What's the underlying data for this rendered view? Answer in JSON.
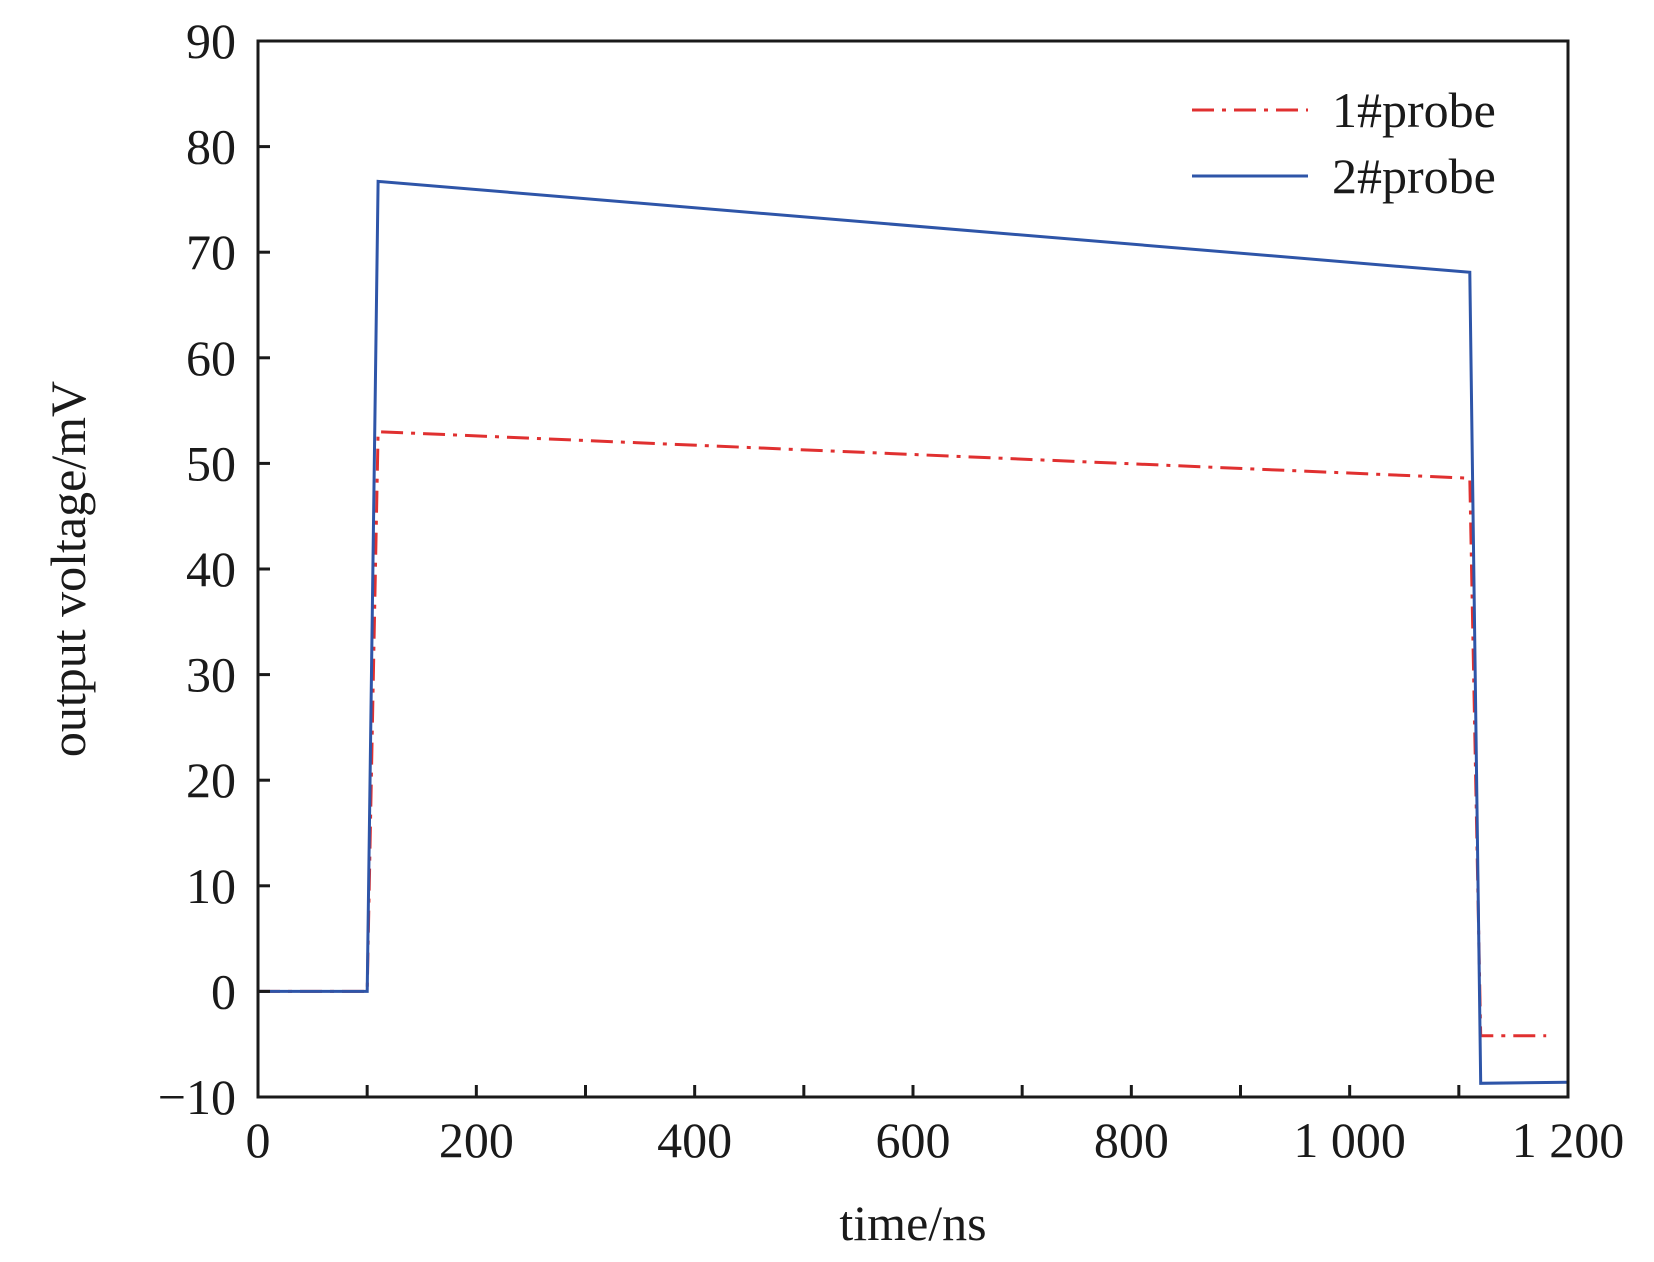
{
  "chart_data": {
    "type": "line",
    "title": "",
    "xlabel": "time/ns",
    "ylabel": "output voltage/mV",
    "xlim": [
      0,
      1200
    ],
    "ylim": [
      -10,
      90
    ],
    "xticks": [
      0,
      200,
      400,
      600,
      800,
      1000,
      1200
    ],
    "xtick_labels": [
      "0",
      "200",
      "400",
      "600",
      "800",
      "1 000",
      "1 200"
    ],
    "yticks": [
      -10,
      0,
      10,
      20,
      30,
      40,
      50,
      60,
      70,
      80,
      90
    ],
    "ytick_labels": [
      "−10",
      "0",
      "10",
      "20",
      "30",
      "40",
      "50",
      "60",
      "70",
      "80",
      "90"
    ],
    "grid": false,
    "legend_position": "top-right",
    "series": [
      {
        "name": "1#probe",
        "color": "#e03030",
        "style": "dash-dot",
        "x": [
          0,
          100,
          110,
          1110,
          1120,
          1180
        ],
        "y": [
          0,
          0,
          53,
          48.6,
          -4.2,
          -4.2
        ]
      },
      {
        "name": "2#probe",
        "color": "#2e55a8",
        "style": "solid",
        "x": [
          0,
          100,
          110,
          1110,
          1120,
          1200
        ],
        "y": [
          0,
          0,
          76.7,
          68.1,
          -8.7,
          -8.6
        ]
      }
    ]
  }
}
